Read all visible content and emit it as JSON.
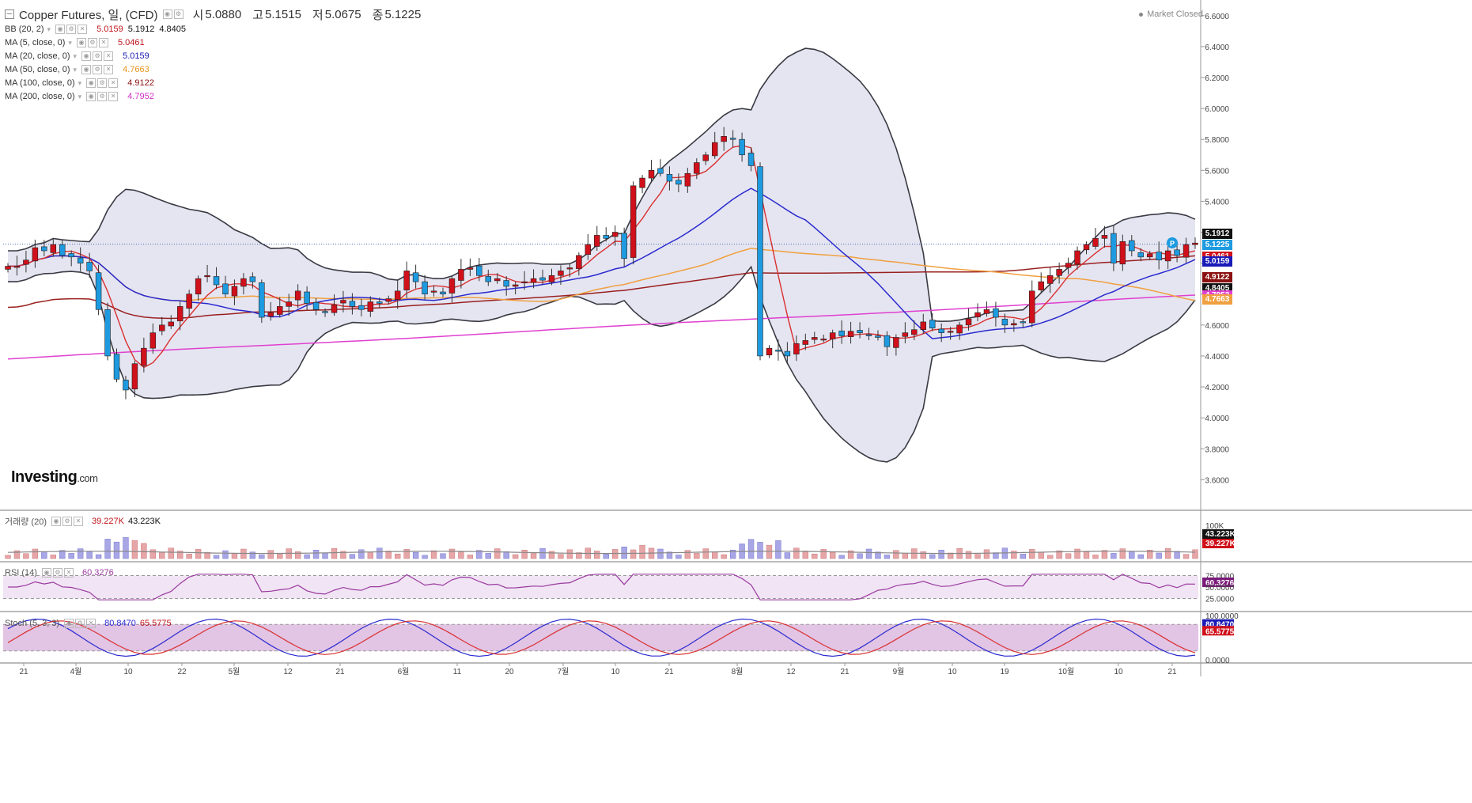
{
  "header": {
    "title": "Copper Futures, 일, (CFD)",
    "open_label": "시",
    "open_value": "5.0880",
    "high_label": "고",
    "high_value": "5.1515",
    "low_label": "저",
    "low_value": "5.0675",
    "close_label": "종",
    "close_value": "5.1225"
  },
  "market_status": "Market Closed",
  "logo": {
    "main": "Investing",
    "suffix": ".com"
  },
  "indicators": [
    {
      "name": "BB (20, 2)",
      "values": [
        "5.0159",
        "5.1912",
        "4.8405"
      ],
      "colors": [
        "#c0151b",
        "#111111",
        "#111111"
      ]
    },
    {
      "name": "MA (5, close, 0)",
      "values": [
        "5.0461"
      ],
      "colors": [
        "#c0151b"
      ]
    },
    {
      "name": "MA (20, close, 0)",
      "values": [
        "5.0159"
      ],
      "colors": [
        "#1a1ab8"
      ]
    },
    {
      "name": "MA (50, close, 0)",
      "values": [
        "4.7663"
      ],
      "colors": [
        "#e8961e"
      ]
    },
    {
      "name": "MA (100, close, 0)",
      "values": [
        "4.9122"
      ],
      "colors": [
        "#8b1010"
      ]
    },
    {
      "name": "MA (200, close, 0)",
      "values": [
        "4.7952"
      ],
      "colors": [
        "#d030c8"
      ]
    }
  ],
  "volume_legend": {
    "name": "거래량 (20)",
    "v1": "39.227K",
    "v2": "43.223K"
  },
  "rsi_legend": {
    "name": "RSI (14)",
    "v1": "60.3276"
  },
  "stoch_legend": {
    "name": "Stoch (5, 3, 3)",
    "v1": "80.8470",
    "v2": "65.5775"
  },
  "colors": {
    "up": "#d0101a",
    "down": "#1e9be0",
    "bb_fill": "#dcdcec",
    "bb_line": "#3a3a44",
    "ma5": "#d93030",
    "ma20": "#2a2ad0",
    "ma50": "#f0a040",
    "ma100": "#9a2020",
    "ma200": "#e040d0",
    "vol_up": "#e6a6a8",
    "vol_down": "#a9a6e6",
    "rsi": "#9a3aa0",
    "stoch_k": "#2a2ad0",
    "stoch_d": "#d93030"
  },
  "chart_data": {
    "type": "candlestick",
    "x_tick_labels": [
      "21",
      "4월",
      "10",
      "22",
      "5월",
      "12",
      "21",
      "6월",
      "11",
      "20",
      "7월",
      "10",
      "21",
      "8월",
      "12",
      "21",
      "9월",
      "10",
      "19",
      "10월",
      "10",
      "21"
    ],
    "y_tick_labels": [
      "6.6000",
      "6.4000",
      "6.2000",
      "6.0000",
      "5.8000",
      "5.6000",
      "5.4000",
      "5.2000",
      "5.0000",
      "4.8000",
      "4.6000",
      "4.4000",
      "4.2000",
      "4.0000",
      "3.8000",
      "3.6000"
    ],
    "ylim": [
      3.52,
      6.65
    ],
    "last_close_price": 5.1225,
    "price_tags": [
      {
        "label": "5.1912",
        "value": 5.1912,
        "bg": "#111111",
        "fg": "#ffffff"
      },
      {
        "label": "5.1225",
        "value": 5.1225,
        "bg": "#1e9be0",
        "fg": "#ffffff"
      },
      {
        "label": "5.0461",
        "value": 5.0461,
        "bg": "#d0101a",
        "fg": "#ffffff"
      },
      {
        "label": "5.0159",
        "value": 5.0159,
        "bg": "#1a1ab8",
        "fg": "#ffffff"
      },
      {
        "label": "4.9122",
        "value": 4.9122,
        "bg": "#8b1010",
        "fg": "#ffffff"
      },
      {
        "label": "4.8405",
        "value": 4.8405,
        "bg": "#111111",
        "fg": "#ffffff"
      },
      {
        "label": "4.7952",
        "value": 4.7952,
        "bg": "#e040d0",
        "fg": "#ffffff"
      },
      {
        "label": "4.7663",
        "value": 4.7663,
        "bg": "#f0a040",
        "fg": "#ffffff"
      }
    ],
    "close_series": [
      4.98,
      4.98,
      5.02,
      5.1,
      5.08,
      5.12,
      5.05,
      5.04,
      5.0,
      4.95,
      4.7,
      4.4,
      4.25,
      4.18,
      4.35,
      4.45,
      4.55,
      4.6,
      4.62,
      4.72,
      4.8,
      4.9,
      4.92,
      4.86,
      4.8,
      4.85,
      4.9,
      4.88,
      4.65,
      4.68,
      4.72,
      4.75,
      4.82,
      4.74,
      4.7,
      4.68,
      4.73,
      4.76,
      4.72,
      4.7,
      4.75,
      4.74,
      4.77,
      4.82,
      4.95,
      4.88,
      4.8,
      4.82,
      4.8,
      4.9,
      4.96,
      4.97,
      4.92,
      4.88,
      4.9,
      4.85,
      4.86,
      4.88,
      4.9,
      4.89,
      4.92,
      4.95,
      4.97,
      5.05,
      5.12,
      5.18,
      5.16,
      5.2,
      5.03,
      5.5,
      5.55,
      5.6,
      5.58,
      5.53,
      5.51,
      5.58,
      5.65,
      5.7,
      5.78,
      5.82,
      5.8,
      5.7,
      5.63,
      4.4,
      4.45,
      4.43,
      4.4,
      4.48,
      4.5,
      4.52,
      4.51,
      4.55,
      4.53,
      4.56,
      4.55,
      4.53,
      4.52,
      4.46,
      4.52,
      4.55,
      4.57,
      4.62,
      4.58,
      4.55,
      4.56,
      4.6,
      4.64,
      4.68,
      4.7,
      4.65,
      4.6,
      4.61,
      4.62,
      4.82,
      4.88,
      4.92,
      4.96,
      5.0,
      5.08,
      5.12,
      5.16,
      5.18,
      5.0,
      5.14,
      5.08,
      5.04,
      5.06,
      5.02,
      5.08,
      5.05,
      5.12,
      5.13
    ],
    "volume_ylim": [
      0,
      100000
    ],
    "volume_tick_labels": [
      "100K",
      "43.223K",
      "39.227K"
    ],
    "rsi_tick_labels": [
      "75.0000",
      "60.3276",
      "50.0000",
      "25.0000"
    ],
    "rsi_last": 60.3276,
    "stoch_tick_labels": [
      "100.0000",
      "80.8470",
      "65.5775",
      "0.0000"
    ],
    "stoch_last_k": 80.847,
    "stoch_last_d": 65.5775
  }
}
